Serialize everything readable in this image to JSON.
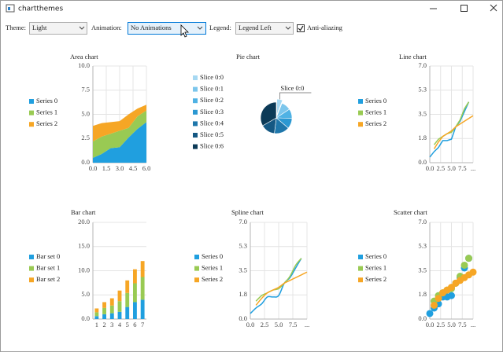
{
  "window": {
    "title": "chartthemes"
  },
  "toolbar": {
    "theme_label": "Theme:",
    "theme_value": "Light",
    "animation_label": "Animation:",
    "animation_value": "No Animations",
    "legend_label": "Legend:",
    "legend_value": "Legend Left",
    "antialiasing_label": "Anti-aliazing",
    "antialiasing_checked": true
  },
  "chart_data": [
    {
      "type": "area",
      "title": "Area chart",
      "x": [
        0,
        1,
        2,
        3,
        4,
        5,
        6
      ],
      "xlim": [
        0,
        6
      ],
      "xticks": [
        {
          "value": 0,
          "label": "0.0"
        },
        {
          "value": 1.5,
          "label": "1.5"
        },
        {
          "value": 3,
          "label": "3.0"
        },
        {
          "value": 4.5,
          "label": "4.5"
        },
        {
          "value": 6,
          "label": "6.0"
        }
      ],
      "ylim": [
        0,
        10
      ],
      "yticks": [
        {
          "value": 0,
          "label": "0.0"
        },
        {
          "value": 2.5,
          "label": "2.5"
        },
        {
          "value": 5,
          "label": "5.0"
        },
        {
          "value": 7.5,
          "label": "7.5"
        },
        {
          "value": 10,
          "label": "10.0"
        }
      ],
      "grid": true,
      "legend": "left",
      "series": [
        {
          "name": "Series 0",
          "color": "#209fdf",
          "values": [
            0.5,
            0.9,
            1.5,
            1.6,
            2.6,
            3.5,
            4.2
          ]
        },
        {
          "name": "Series 1",
          "color": "#99ca53",
          "values": [
            1.7,
            1.8,
            1.5,
            1.7,
            1.0,
            1.3,
            1.2
          ]
        },
        {
          "name": "Series 2",
          "color": "#f6a625",
          "values": [
            1.6,
            1.4,
            1.2,
            1.0,
            1.4,
            0.8,
            0.6
          ]
        }
      ]
    },
    {
      "type": "pie",
      "title": "Pie chart",
      "legend": "left",
      "categories": [
        "Slice 0:0",
        "Slice 0:1",
        "Slice 0:2",
        "Slice 0:3",
        "Slice 0:4",
        "Slice 0:5",
        "Slice 0:6"
      ],
      "values": [
        0.6,
        1.0,
        1.0,
        1.1,
        1.6,
        1.5,
        3.4
      ],
      "colors": [
        "#a6d8f2",
        "#7cc6ec",
        "#4fb2e4",
        "#2b98d2",
        "#1f77ab",
        "#155883",
        "#0c3a57"
      ],
      "exploded": 0
    },
    {
      "type": "line",
      "title": "Line chart",
      "xlim": [
        0,
        10
      ],
      "xticks": [
        {
          "value": 0,
          "label": "0.0"
        },
        {
          "value": 2.5,
          "label": "2.5"
        },
        {
          "value": 5,
          "label": "5.0"
        },
        {
          "value": 7.5,
          "label": "7.5"
        },
        {
          "value": 10,
          "label": "..."
        }
      ],
      "ylim": [
        0,
        7
      ],
      "yticks": [
        {
          "value": 0,
          "label": "0.0"
        },
        {
          "value": 1.75,
          "label": "1.8"
        },
        {
          "value": 3.5,
          "label": "3.5"
        },
        {
          "value": 5.25,
          "label": "5.3"
        },
        {
          "value": 7,
          "label": "7.0"
        }
      ],
      "grid": true,
      "legend": "left",
      "series": [
        {
          "name": "Series 0",
          "color": "#209fdf",
          "x": [
            0,
            1,
            2,
            3,
            4,
            5,
            6,
            7,
            8,
            9
          ],
          "values": [
            0.4,
            0.8,
            1.1,
            1.6,
            1.6,
            1.7,
            2.6,
            3.0,
            3.7,
            4.4
          ]
        },
        {
          "name": "Series 1",
          "color": "#99ca53",
          "x": [
            1,
            2,
            3,
            4,
            5,
            6,
            7,
            8,
            9
          ],
          "values": [
            1.3,
            1.7,
            1.9,
            2.1,
            2.2,
            2.6,
            3.1,
            3.9,
            4.4
          ]
        },
        {
          "name": "Series 2",
          "color": "#f6a625",
          "x": [
            1,
            2,
            3,
            4,
            5,
            6,
            7,
            8,
            9,
            10
          ],
          "values": [
            1.0,
            1.5,
            1.9,
            2.1,
            2.3,
            2.6,
            2.8,
            3.0,
            3.2,
            3.4
          ]
        }
      ]
    },
    {
      "type": "bar",
      "title": "Bar chart",
      "categories": [
        "1",
        "2",
        "3",
        "4",
        "5",
        "6",
        "7"
      ],
      "ylim": [
        0,
        20
      ],
      "yticks": [
        {
          "value": 0,
          "label": "0.0"
        },
        {
          "value": 5,
          "label": "5.0"
        },
        {
          "value": 10,
          "label": "10.0"
        },
        {
          "value": 15,
          "label": "15.0"
        },
        {
          "value": 20,
          "label": "20.0"
        }
      ],
      "grid": true,
      "legend": "left",
      "stacked": true,
      "series": [
        {
          "name": "Bar set 0",
          "color": "#209fdf",
          "values": [
            0.6,
            1.0,
            1.2,
            1.5,
            2.5,
            3.5,
            4.0
          ]
        },
        {
          "name": "Bar set 1",
          "color": "#99ca53",
          "values": [
            0.8,
            1.3,
            1.6,
            2.2,
            2.9,
            3.9,
            4.7
          ]
        },
        {
          "name": "Bar set 2",
          "color": "#f6a625",
          "values": [
            0.8,
            1.2,
            1.5,
            2.2,
            2.6,
            2.9,
            3.3
          ]
        }
      ]
    },
    {
      "type": "spline",
      "title": "Spline chart",
      "xlim": [
        0,
        10
      ],
      "xticks": [
        {
          "value": 0,
          "label": "0.0"
        },
        {
          "value": 2.5,
          "label": "2.5"
        },
        {
          "value": 5,
          "label": "5.0"
        },
        {
          "value": 7.5,
          "label": "7.5"
        },
        {
          "value": 10,
          "label": "..."
        }
      ],
      "ylim": [
        0,
        7
      ],
      "yticks": [
        {
          "value": 0,
          "label": "0.0"
        },
        {
          "value": 1.75,
          "label": "1.8"
        },
        {
          "value": 3.5,
          "label": "3.5"
        },
        {
          "value": 5.25,
          "label": "5.3"
        },
        {
          "value": 7,
          "label": "7.0"
        }
      ],
      "grid": true,
      "legend": "left",
      "series": [
        {
          "name": "Series 0",
          "color": "#209fdf",
          "x": [
            0,
            1,
            2,
            3,
            4,
            5,
            6,
            7,
            8,
            9
          ],
          "values": [
            0.4,
            0.8,
            1.1,
            1.6,
            1.6,
            1.7,
            2.6,
            3.0,
            3.7,
            4.4
          ]
        },
        {
          "name": "Series 1",
          "color": "#99ca53",
          "x": [
            1,
            2,
            3,
            4,
            5,
            6,
            7,
            8,
            9
          ],
          "values": [
            1.3,
            1.7,
            1.9,
            2.1,
            2.2,
            2.6,
            3.1,
            3.9,
            4.4
          ]
        },
        {
          "name": "Series 2",
          "color": "#f6a625",
          "x": [
            1,
            2,
            3,
            4,
            5,
            6,
            7,
            8,
            9,
            10
          ],
          "values": [
            1.0,
            1.5,
            1.9,
            2.1,
            2.3,
            2.6,
            2.8,
            3.0,
            3.2,
            3.4
          ]
        }
      ]
    },
    {
      "type": "scatter",
      "title": "Scatter chart",
      "xlim": [
        0,
        10
      ],
      "xticks": [
        {
          "value": 0,
          "label": "0.0"
        },
        {
          "value": 2.5,
          "label": "2.5"
        },
        {
          "value": 5,
          "label": "5.0"
        },
        {
          "value": 7.5,
          "label": "7.5"
        },
        {
          "value": 10,
          "label": "..."
        }
      ],
      "ylim": [
        0,
        7
      ],
      "yticks": [
        {
          "value": 0,
          "label": "0.0"
        },
        {
          "value": 1.75,
          "label": "1.8"
        },
        {
          "value": 3.5,
          "label": "3.5"
        },
        {
          "value": 5.25,
          "label": "5.3"
        },
        {
          "value": 7,
          "label": "7.0"
        }
      ],
      "grid": true,
      "legend": "left",
      "series": [
        {
          "name": "Series 0",
          "color": "#209fdf",
          "x": [
            0,
            1,
            2,
            3,
            4,
            5,
            6,
            7,
            8,
            9
          ],
          "values": [
            0.4,
            0.8,
            1.1,
            1.6,
            1.6,
            1.7,
            2.6,
            3.0,
            3.7,
            4.4
          ]
        },
        {
          "name": "Series 1",
          "color": "#99ca53",
          "x": [
            1,
            2,
            3,
            4,
            5,
            6,
            7,
            8,
            9
          ],
          "values": [
            1.3,
            1.7,
            1.9,
            2.1,
            2.2,
            2.6,
            3.1,
            3.9,
            4.4
          ]
        },
        {
          "name": "Series 2",
          "color": "#f6a625",
          "x": [
            1,
            2,
            3,
            4,
            5,
            6,
            7,
            8,
            9,
            10
          ],
          "values": [
            1.0,
            1.5,
            1.9,
            2.1,
            2.3,
            2.6,
            2.8,
            3.0,
            3.2,
            3.4
          ]
        }
      ]
    }
  ]
}
